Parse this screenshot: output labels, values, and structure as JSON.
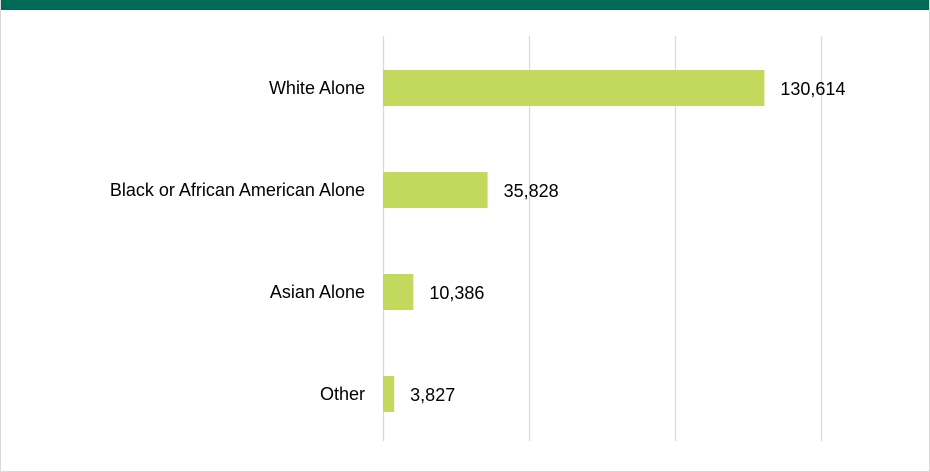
{
  "colors": {
    "header_bar": "#006a55",
    "bar": "#c3d95d",
    "gridline": "#d9d9d9"
  },
  "chart_data": {
    "type": "bar",
    "orientation": "horizontal",
    "categories": [
      "White Alone",
      "Black or African American Alone",
      "Asian Alone",
      "Other"
    ],
    "values": [
      130614,
      35828,
      10386,
      3827
    ],
    "value_labels": [
      "130,614",
      "35,828",
      "10,386",
      "3,827"
    ],
    "xlim": [
      0,
      150000
    ],
    "grid": true,
    "gridline_values": [
      0,
      50000,
      100000,
      150000
    ],
    "legend": "none"
  }
}
